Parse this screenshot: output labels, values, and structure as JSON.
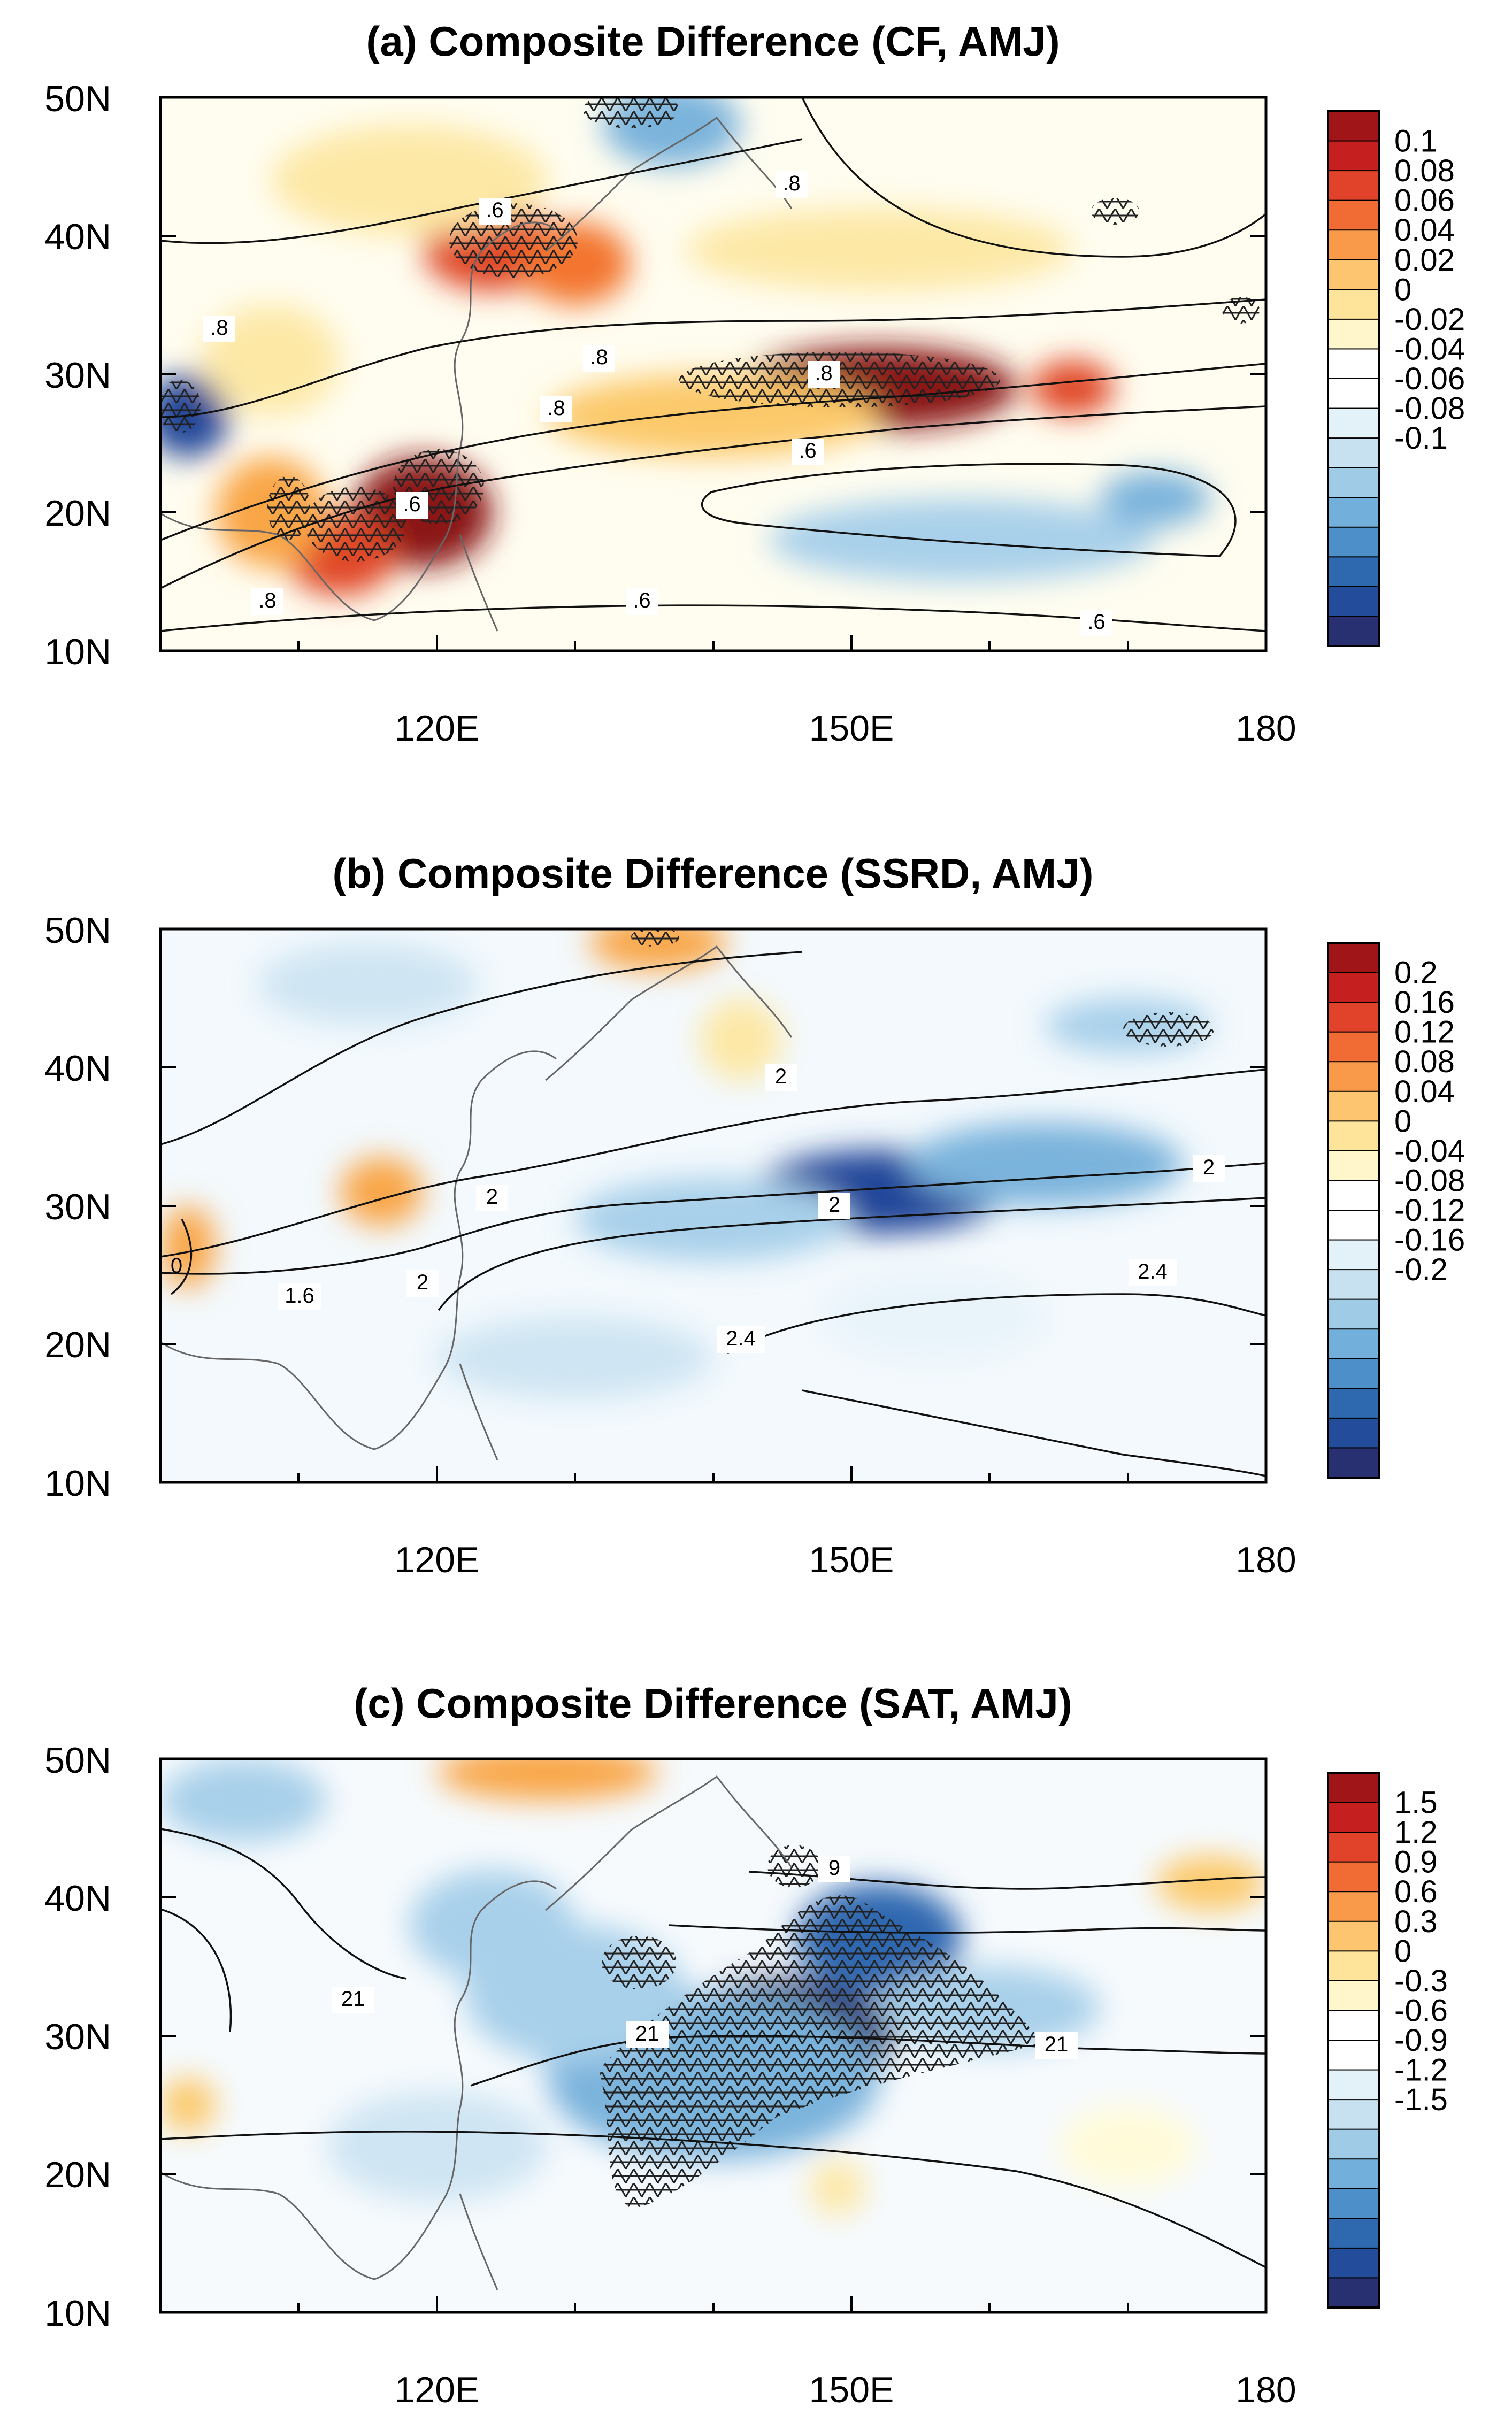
{
  "chart_data": [
    {
      "type": "heatmap",
      "title": "(a) Composite Difference (CF, AMJ)",
      "x_ticks": [
        "120E",
        "150E",
        "180"
      ],
      "y_ticks": [
        "10N",
        "20N",
        "30N",
        "40N",
        "50N"
      ],
      "xlim": [
        100,
        180
      ],
      "ylim": [
        10,
        50
      ],
      "colorbar_labels": [
        "0.1",
        "0.08",
        "0.06",
        "0.04",
        "0.02",
        "0",
        "-0.02",
        "-0.04",
        "-0.06",
        "-0.08",
        "-0.1"
      ],
      "vmin": -0.1,
      "vmax": 0.1,
      "contour_labels": [
        ".8",
        ".6",
        ".8",
        ".8",
        ".8",
        ".6",
        ".6",
        ".8",
        ".6",
        ".8",
        ".6"
      ],
      "features": [
        {
          "lon": 152,
          "lat": 29,
          "value": 0.095,
          "rx": 10,
          "ry": 3
        },
        {
          "lon": 166,
          "lat": 29,
          "value": 0.07,
          "rx": 3,
          "ry": 2
        },
        {
          "lon": 119,
          "lat": 20,
          "value": 0.095,
          "rx": 5,
          "ry": 4
        },
        {
          "lon": 113,
          "lat": 17,
          "value": 0.07,
          "rx": 4,
          "ry": 3
        },
        {
          "lon": 108,
          "lat": 20,
          "value": 0.05,
          "rx": 4,
          "ry": 4
        },
        {
          "lon": 124,
          "lat": 39,
          "value": 0.075,
          "rx": 5,
          "ry": 3
        },
        {
          "lon": 130,
          "lat": 38,
          "value": 0.06,
          "rx": 4,
          "ry": 3
        },
        {
          "lon": 118,
          "lat": 44,
          "value": 0.03,
          "rx": 10,
          "ry": 4
        },
        {
          "lon": 140,
          "lat": 27,
          "value": 0.04,
          "rx": 12,
          "ry": 3
        },
        {
          "lon": 152,
          "lat": 39,
          "value": 0.02,
          "rx": 14,
          "ry": 3
        },
        {
          "lon": 102,
          "lat": 27,
          "value": -0.09,
          "rx": 3,
          "ry": 3
        },
        {
          "lon": 137,
          "lat": 48,
          "value": -0.05,
          "rx": 5,
          "ry": 3
        },
        {
          "lon": 158,
          "lat": 18,
          "value": -0.04,
          "rx": 14,
          "ry": 3
        },
        {
          "lon": 172,
          "lat": 21,
          "value": -0.05,
          "rx": 4,
          "ry": 2
        },
        {
          "lon": 108,
          "lat": 31,
          "value": 0.03,
          "rx": 5,
          "ry": 4
        }
      ]
    },
    {
      "type": "heatmap",
      "title": "(b) Composite Difference (SSRD, AMJ)",
      "x_ticks": [
        "120E",
        "150E",
        "180"
      ],
      "y_ticks": [
        "10N",
        "20N",
        "30N",
        "40N",
        "50N"
      ],
      "xlim": [
        100,
        180
      ],
      "ylim": [
        10,
        50
      ],
      "colorbar_labels": [
        "0.2",
        "0.16",
        "0.12",
        "0.08",
        "0.04",
        "0",
        "-0.04",
        "-0.08",
        "-0.12",
        "-0.16",
        "-0.2"
      ],
      "vmin": -0.2,
      "vmax": 0.2,
      "contour_labels": [
        "2",
        "2",
        "2",
        "2",
        "2",
        "1.6",
        "2.4",
        "2.4",
        "0"
      ],
      "features": [
        {
          "lon": 152,
          "lat": 31,
          "value": -0.17,
          "rx": 9,
          "ry": 3
        },
        {
          "lon": 164,
          "lat": 33,
          "value": -0.1,
          "rx": 10,
          "ry": 3
        },
        {
          "lon": 140,
          "lat": 29,
          "value": -0.08,
          "rx": 10,
          "ry": 3
        },
        {
          "lon": 170,
          "lat": 43,
          "value": -0.08,
          "rx": 6,
          "ry": 2
        },
        {
          "lon": 116,
          "lat": 31,
          "value": 0.11,
          "rx": 3,
          "ry": 2.5
        },
        {
          "lon": 102,
          "lat": 27,
          "value": 0.11,
          "rx": 2,
          "ry": 3
        },
        {
          "lon": 136,
          "lat": 49,
          "value": 0.11,
          "rx": 5,
          "ry": 2
        },
        {
          "lon": 142,
          "lat": 42,
          "value": 0.05,
          "rx": 3,
          "ry": 3
        },
        {
          "lon": 115,
          "lat": 46,
          "value": -0.04,
          "rx": 8,
          "ry": 3
        },
        {
          "lon": 130,
          "lat": 19,
          "value": -0.04,
          "rx": 10,
          "ry": 3
        },
        {
          "lon": 156,
          "lat": 22,
          "value": -0.03,
          "rx": 8,
          "ry": 3
        }
      ]
    },
    {
      "type": "heatmap",
      "title": "(c) Composite Difference (SAT, AMJ)",
      "x_ticks": [
        "120E",
        "150E",
        "180"
      ],
      "y_ticks": [
        "10N",
        "20N",
        "30N",
        "40N",
        "50N"
      ],
      "xlim": [
        100,
        180
      ],
      "ylim": [
        10,
        50
      ],
      "colorbar_labels": [
        "1.5",
        "1.2",
        "0.9",
        "0.6",
        "0.3",
        "0",
        "-0.3",
        "-0.6",
        "-0.9",
        "-1.2",
        "-1.5"
      ],
      "vmin": -1.5,
      "vmax": 1.5,
      "contour_labels": [
        "9",
        "21",
        "21",
        "21"
      ],
      "features": [
        {
          "lon": 145,
          "lat": 30,
          "value": -1.45,
          "rx": 8,
          "ry": 4
        },
        {
          "lon": 152,
          "lat": 37,
          "value": -1.1,
          "rx": 6,
          "ry": 4
        },
        {
          "lon": 140,
          "lat": 27,
          "value": -0.8,
          "rx": 12,
          "ry": 6
        },
        {
          "lon": 130,
          "lat": 33,
          "value": -0.6,
          "rx": 8,
          "ry": 5
        },
        {
          "lon": 124,
          "lat": 38,
          "value": -0.5,
          "rx": 6,
          "ry": 4
        },
        {
          "lon": 106,
          "lat": 47,
          "value": -0.5,
          "rx": 6,
          "ry": 3
        },
        {
          "lon": 160,
          "lat": 32,
          "value": -0.5,
          "rx": 8,
          "ry": 3
        },
        {
          "lon": 120,
          "lat": 22,
          "value": -0.3,
          "rx": 8,
          "ry": 4
        },
        {
          "lon": 128,
          "lat": 49,
          "value": 0.75,
          "rx": 8,
          "ry": 2
        },
        {
          "lon": 176,
          "lat": 41,
          "value": 0.55,
          "rx": 4,
          "ry": 2
        },
        {
          "lon": 102,
          "lat": 25,
          "value": 0.55,
          "rx": 2,
          "ry": 2
        },
        {
          "lon": 149,
          "lat": 19,
          "value": 0.3,
          "rx": 2,
          "ry": 2
        },
        {
          "lon": 170,
          "lat": 22,
          "value": 0.2,
          "rx": 5,
          "ry": 3
        }
      ]
    }
  ],
  "palette": [
    "#262d6c",
    "#22479a",
    "#2f68b0",
    "#4c8ec7",
    "#7ab3dc",
    "#a8d0ea",
    "#cfe5f3",
    "#e8f3fa",
    "#ffffff",
    "#fffbd9",
    "#fde8a6",
    "#fcc96b",
    "#f9a646",
    "#f3752e",
    "#e04626",
    "#be1e1f",
    "#8a1216"
  ],
  "colorbar_colors": [
    "#9f1518",
    "#c5201f",
    "#e0432a",
    "#f16c34",
    "#f99a4b",
    "#fdc56f",
    "#fee39b",
    "#fff6cc",
    "#ffffff",
    "#ffffff",
    "#e3f1f9",
    "#c7e1f1",
    "#9fcbe7",
    "#72afdb",
    "#4d8fc8",
    "#2e69af",
    "#234c9a",
    "#283072"
  ]
}
